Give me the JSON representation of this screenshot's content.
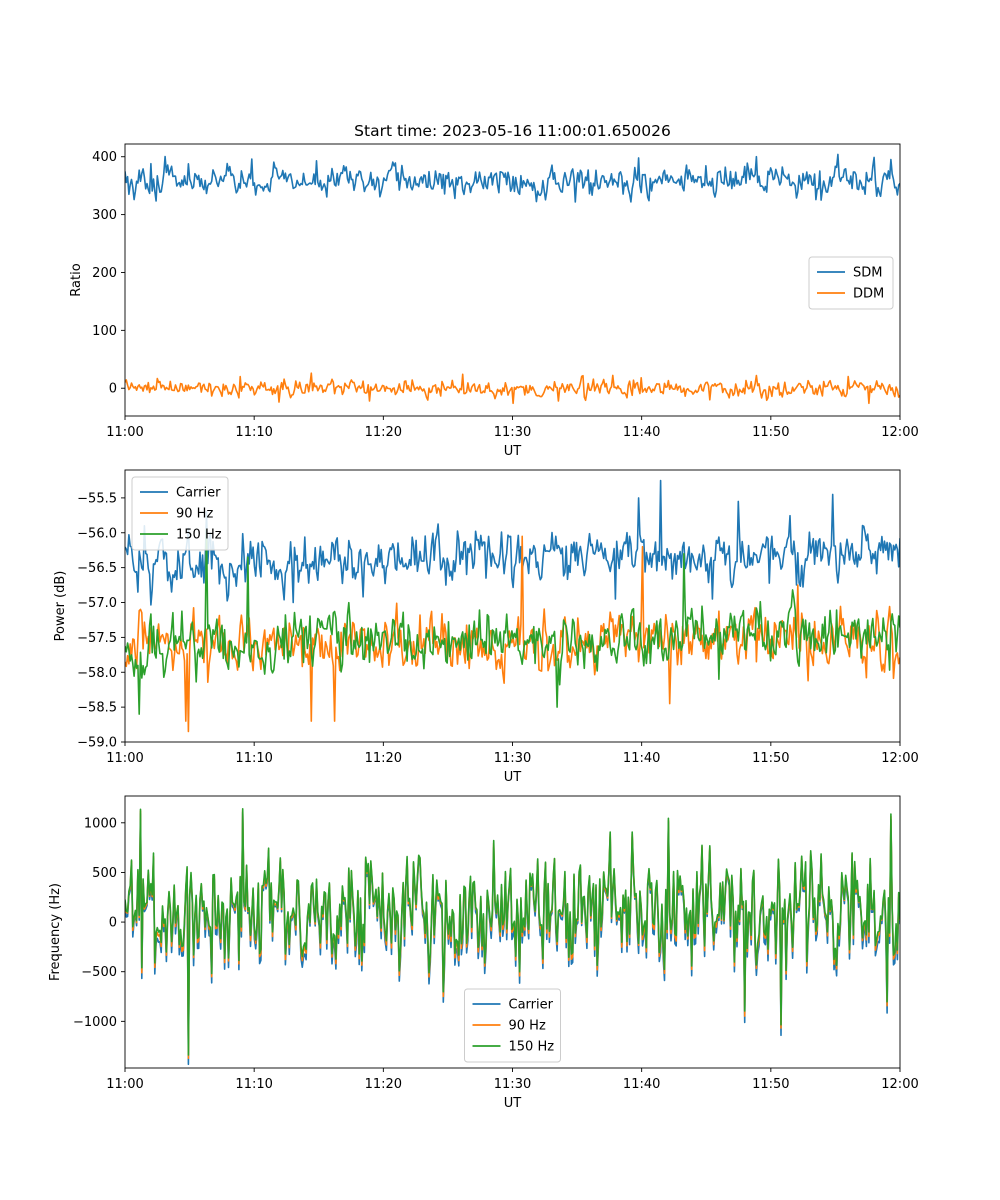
{
  "title": "Start time: 2023-05-16 11:00:01.650026",
  "chart_data": [
    {
      "type": "line",
      "title": "Start time: 2023-05-16 11:00:01.650026",
      "xlabel": "UT",
      "ylabel": "Ratio",
      "xticklabels": [
        "11:00",
        "11:10",
        "11:20",
        "11:30",
        "11:40",
        "11:50",
        "12:00"
      ],
      "xlim": [
        0,
        60
      ],
      "ylim": [
        -48,
        422
      ],
      "yticks": [
        0,
        100,
        200,
        300,
        400
      ],
      "yticklabels": [
        "0",
        "100",
        "200",
        "300",
        "400"
      ],
      "legend_position": "center-right",
      "grid": false,
      "series": [
        {
          "name": "SDM",
          "color": "#1f77b4",
          "mean": 358,
          "amplitude": 14,
          "peaks": [
            [
              2.0,
              388
            ],
            [
              14.8,
              393
            ],
            [
              39.8,
              398
            ],
            [
              48.9,
              400
            ],
            [
              55.2,
              404
            ],
            [
              59.3,
              395
            ]
          ],
          "troughs": [
            [
              0.3,
              335
            ],
            [
              25.5,
              328
            ],
            [
              34.9,
              322
            ],
            [
              40.6,
              324
            ],
            [
              53.9,
              325
            ],
            [
              59.8,
              334
            ]
          ]
        },
        {
          "name": "DDM",
          "color": "#ff7f0e",
          "mean": 0,
          "amplitude": 8,
          "peaks": [
            [
              8.9,
              20
            ],
            [
              14.4,
              26
            ],
            [
              26.1,
              24
            ],
            [
              40.0,
              18
            ],
            [
              48.9,
              22
            ],
            [
              56.0,
              20
            ]
          ],
          "troughs": [
            [
              11.9,
              -24
            ],
            [
              18.9,
              -22
            ],
            [
              30.1,
              -26
            ],
            [
              33.6,
              -22
            ],
            [
              45.3,
              -20
            ],
            [
              57.6,
              -26
            ]
          ]
        }
      ]
    },
    {
      "type": "line",
      "xlabel": "UT",
      "ylabel": "Power (dB)",
      "xticklabels": [
        "11:00",
        "11:10",
        "11:20",
        "11:30",
        "11:40",
        "11:50",
        "12:00"
      ],
      "xlim": [
        0,
        60
      ],
      "ylim": [
        -59.0,
        -55.1
      ],
      "yticks": [
        -59.0,
        -58.5,
        -58.0,
        -57.5,
        -57.0,
        -56.5,
        -56.0,
        -55.5
      ],
      "yticklabels": [
        "−59.0",
        "−58.5",
        "−58.0",
        "−57.5",
        "−57.0",
        "−56.5",
        "−56.0",
        "−55.5"
      ],
      "legend_position": "upper-left",
      "grid": false,
      "series": [
        {
          "name": "Carrier",
          "color": "#1f77b4",
          "mean_start": -56.45,
          "mean_end": -56.3,
          "amplitude": 0.2,
          "peaks": [
            [
              1.5,
              -55.9
            ],
            [
              6.3,
              -55.7
            ],
            [
              39.8,
              -55.5
            ],
            [
              41.5,
              -55.25
            ],
            [
              47.5,
              -55.55
            ],
            [
              54.8,
              -55.45
            ]
          ],
          "troughs": [
            [
              1.0,
              -56.85
            ],
            [
              13.0,
              -57.0
            ],
            [
              38.0,
              -56.95
            ],
            [
              45.5,
              -56.95
            ]
          ]
        },
        {
          "name": "90 Hz",
          "color": "#ff7f0e",
          "mean_start": -57.6,
          "mean_end": -57.55,
          "amplitude": 0.22,
          "peaks": [
            [
              30.8,
              -56.05
            ],
            [
              40.1,
              -56.2
            ],
            [
              52.1,
              -56.75
            ]
          ],
          "troughs": [
            [
              4.7,
              -58.7
            ],
            [
              4.9,
              -58.85
            ],
            [
              14.4,
              -58.7
            ],
            [
              16.2,
              -58.7
            ],
            [
              42.2,
              -58.45
            ]
          ]
        },
        {
          "name": "150 Hz",
          "color": "#2ca02c",
          "mean_start": -57.65,
          "mean_end": -57.4,
          "amplitude": 0.22,
          "peaks": [
            [
              6.3,
              -55.95
            ],
            [
              9.5,
              -56.35
            ],
            [
              43.3,
              -56.3
            ]
          ],
          "troughs": [
            [
              1.1,
              -58.6
            ],
            [
              33.5,
              -58.5
            ],
            [
              46.0,
              -58.1
            ]
          ]
        }
      ]
    },
    {
      "type": "line",
      "xlabel": "UT",
      "ylabel": "Frequency (Hz)",
      "xticklabels": [
        "11:00",
        "11:10",
        "11:20",
        "11:30",
        "11:40",
        "11:50",
        "12:00"
      ],
      "xlim": [
        0,
        60
      ],
      "ylim": [
        -1470,
        1270
      ],
      "yticks": [
        -1000,
        -500,
        0,
        500,
        1000
      ],
      "yticklabels": [
        "−1000",
        "−500",
        "0",
        "500",
        "1000"
      ],
      "legend_position": "lower-center",
      "grid": false,
      "series": [
        {
          "name": "Carrier",
          "color": "#1f77b4",
          "offset": -80
        },
        {
          "name": "90 Hz",
          "color": "#ff7f0e",
          "offset": -30
        },
        {
          "name": "150 Hz",
          "color": "#2ca02c",
          "offset": 0,
          "peaks": [
            [
              1.2,
              1140
            ],
            [
              9.1,
              1150
            ],
            [
              42.1,
              1050
            ],
            [
              59.3,
              1090
            ],
            [
              39.3,
              900
            ]
          ],
          "troughs": [
            [
              4.9,
              -1330
            ],
            [
              50.8,
              -1030
            ],
            [
              48.0,
              -900
            ],
            [
              59.0,
              -810
            ]
          ]
        }
      ]
    }
  ]
}
